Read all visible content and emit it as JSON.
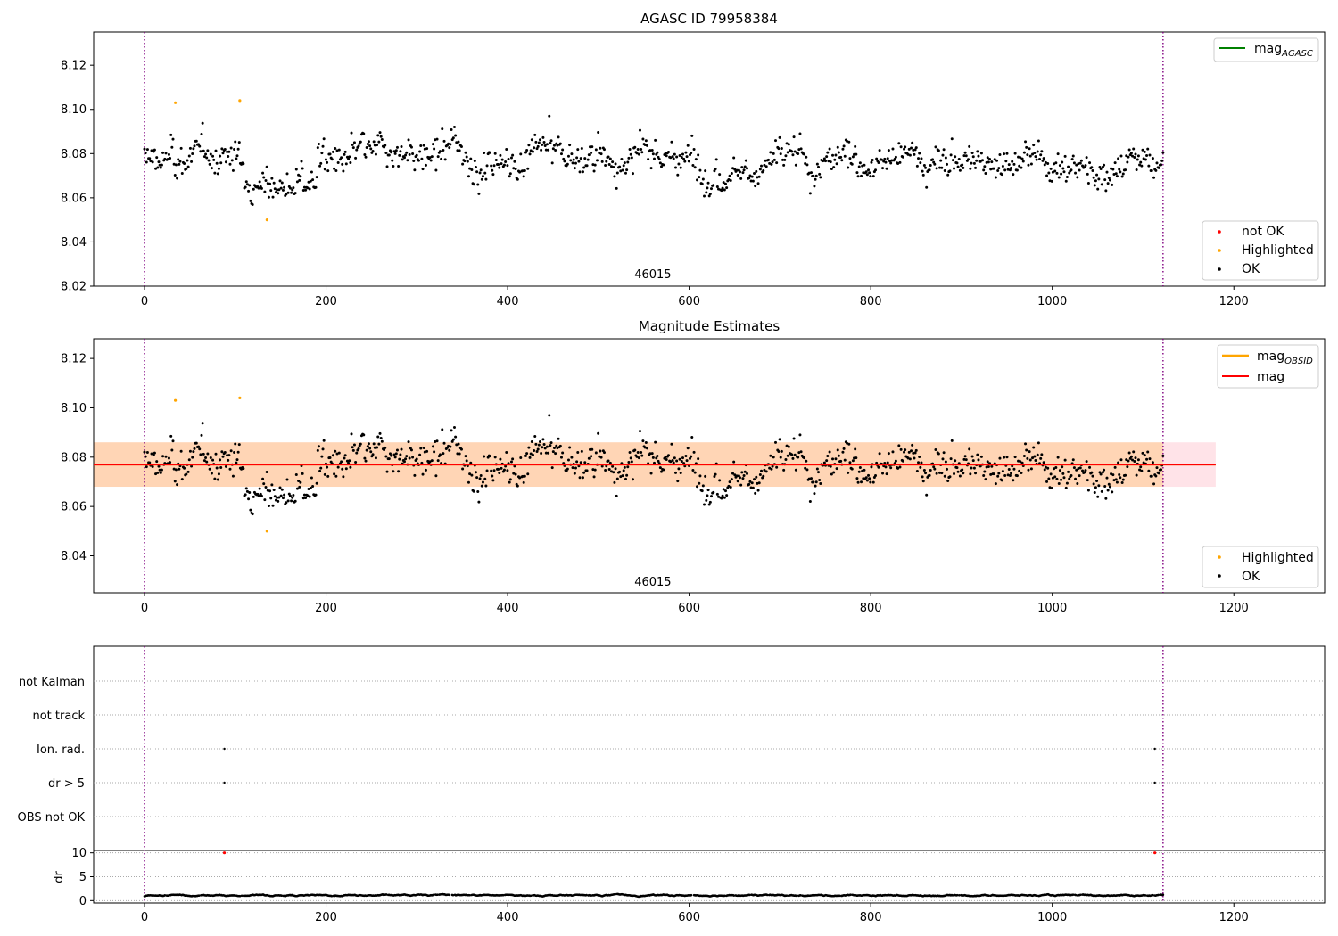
{
  "chart_data": [
    {
      "type": "scatter",
      "title": "AGASC ID 79958384",
      "xlim": [
        -56,
        1300
      ],
      "ylim": [
        8.02,
        8.135
      ],
      "xticks": [
        0,
        200,
        400,
        600,
        800,
        1000,
        1200
      ],
      "yticks": [
        8.02,
        8.04,
        8.06,
        8.08,
        8.1,
        8.12
      ],
      "obsid_label": "46015",
      "obsid_x": 560,
      "vlines": [
        0,
        1122
      ],
      "legend_line": {
        "base": "mag",
        "sub": "AGASC",
        "color": "#008000"
      },
      "legend_points": [
        {
          "label": "not OK",
          "color": "#ff0000"
        },
        {
          "label": "Highlighted",
          "color": "#ffa500"
        },
        {
          "label": "OK",
          "color": "#000000"
        }
      ],
      "highlighted": [
        [
          34,
          8.103
        ],
        [
          105,
          8.104
        ],
        [
          135,
          8.05
        ]
      ],
      "series": [
        {
          "name": "OK",
          "x_start": 0,
          "x_end": 1122,
          "count": 1000,
          "y_min": 8.053,
          "y_max": 8.099
        }
      ]
    },
    {
      "type": "scatter",
      "title": "Magnitude Estimates",
      "xlim": [
        -56,
        1300
      ],
      "ylim": [
        8.025,
        8.128
      ],
      "xticks": [
        0,
        200,
        400,
        600,
        800,
        1000,
        1200
      ],
      "yticks": [
        8.04,
        8.06,
        8.08,
        8.1,
        8.12
      ],
      "obsid_label": "46015",
      "obsid_x": 560,
      "vlines": [
        0,
        1122
      ],
      "mag": 8.077,
      "band": [
        8.068,
        8.086
      ],
      "band_xmax": 1180,
      "legend_lines": [
        {
          "base": "mag",
          "sub": "OBSID",
          "color": "#ffa500"
        },
        {
          "base": "mag",
          "sub": "",
          "color": "#ff0000"
        }
      ],
      "legend_points": [
        {
          "label": "Highlighted",
          "color": "#ffa500"
        },
        {
          "label": "OK",
          "color": "#000000"
        }
      ],
      "highlighted": [
        [
          34,
          8.103
        ],
        [
          105,
          8.104
        ],
        [
          135,
          8.05
        ]
      ]
    },
    {
      "type": "scatter",
      "title": "",
      "xlim": [
        -56,
        1300
      ],
      "xticks": [
        0,
        200,
        400,
        600,
        800,
        1000,
        1200
      ],
      "vlines": [
        0,
        1122
      ],
      "flag_labels": [
        "not Kalman",
        "not track",
        "Ion. rad.",
        "dr > 5",
        "OBS not OK"
      ],
      "flag_points": [
        [
          88,
          2
        ],
        [
          1113,
          2
        ],
        [
          88,
          3
        ],
        [
          1113,
          3
        ]
      ],
      "dr_ylabel": "dr",
      "dr_ylim": [
        -0.5,
        10.5
      ],
      "dr_yticks": [
        0,
        5,
        10
      ],
      "dr_red_points": [
        [
          88,
          10
        ],
        [
          1113,
          10
        ]
      ],
      "dr_typical": [
        0,
        2
      ]
    }
  ]
}
